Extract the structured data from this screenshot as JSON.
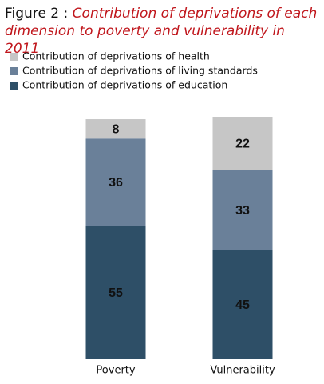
{
  "chart_data": {
    "type": "stacked_bar",
    "figure_label": "Figure 2 :",
    "title": "Contribution of deprivations of each dimension to poverty and vulnerability in 2011",
    "categories": [
      "Poverty",
      "Vulnerability"
    ],
    "series": [
      {
        "name": "Contribution of deprivations of health",
        "color": "#c6c6c6",
        "values": [
          8,
          22
        ]
      },
      {
        "name": "Contribution of deprivations of living standards",
        "color": "#6a8099",
        "values": [
          36,
          33
        ]
      },
      {
        "name": "Contribution of deprivations of education",
        "color": "#2e4f67",
        "values": [
          55,
          45
        ]
      }
    ],
    "legend": "top-left"
  }
}
